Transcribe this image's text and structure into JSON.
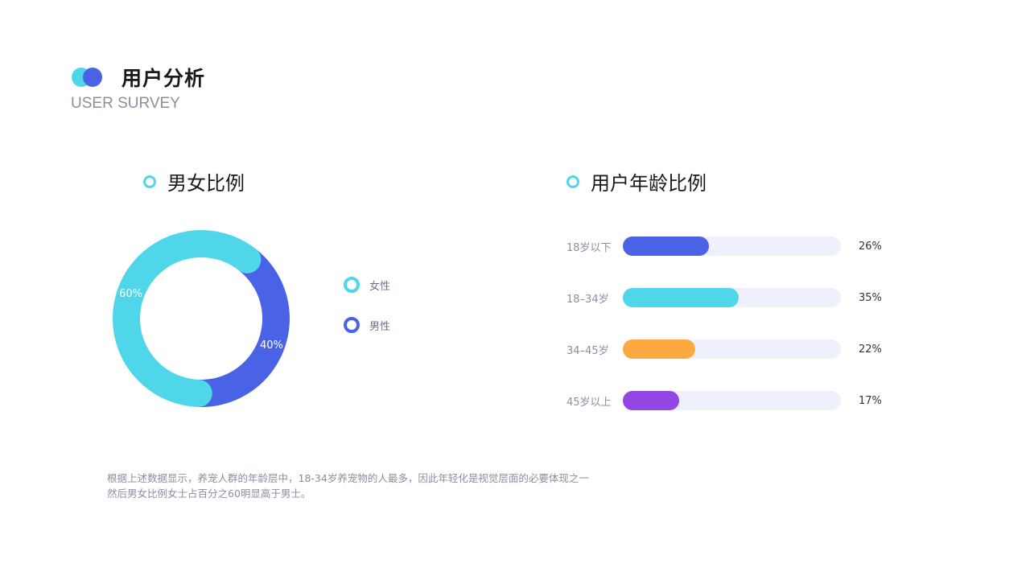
{
  "header": {
    "title": "用户分析",
    "subtitle": "USER SURVEY"
  },
  "gender_section": {
    "title": "男女比例"
  },
  "age_section": {
    "title": "用户年龄比例"
  },
  "colors": {
    "female": "#4fd6e9",
    "male": "#4a63e6",
    "track": "#eef0fb"
  },
  "chart_data": [
    {
      "type": "pie",
      "title": "男女比例",
      "categories": [
        "女性",
        "男性"
      ],
      "values": [
        60,
        40
      ],
      "labels": [
        "60%",
        "40%"
      ],
      "colors": [
        "#4fd6e9",
        "#4a63e6"
      ],
      "legend": "right"
    },
    {
      "type": "bar",
      "title": "用户年龄比例",
      "categories": [
        "18岁以下",
        "18–34岁",
        "34–45岁",
        "45岁以上"
      ],
      "values": [
        26,
        35,
        22,
        17
      ],
      "labels": [
        "26%",
        "35%",
        "22%",
        "17%"
      ],
      "colors": [
        "#4a63e6",
        "#4fd6e9",
        "#fca942",
        "#9346e3"
      ],
      "ylim": [
        0,
        66
      ]
    }
  ],
  "note": {
    "line1": "根据上述数据显示，养宠人群的年龄层中，18-34岁养宠物的人最多，因此年轻化是视觉层面的必要体现之一",
    "line2": "然后男女比例女士占百分之60明显高于男士。"
  }
}
